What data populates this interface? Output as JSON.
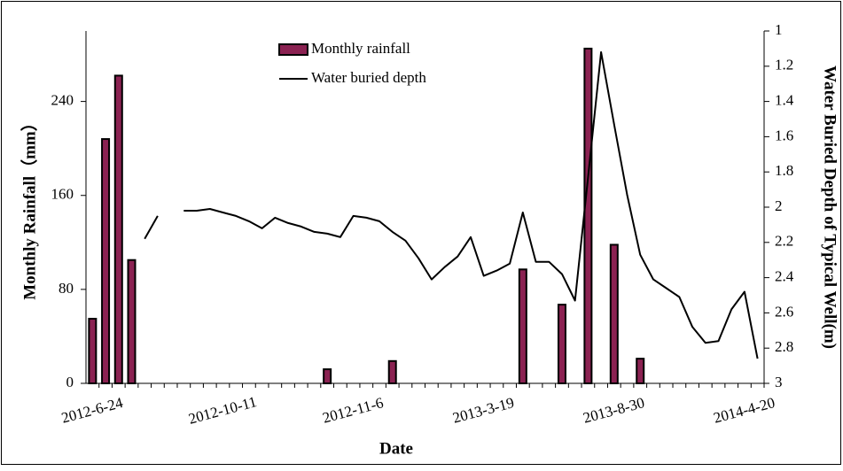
{
  "chart_data": {
    "type": "bar",
    "x_label": "Date",
    "y_label": "Monthly Rainfall（mm）",
    "y2_label": "Water Buried Depth of Typical Well(m)",
    "categories": [
      "2012-6-24",
      null,
      null,
      null,
      null,
      null,
      null,
      null,
      null,
      null,
      "2012-10-11",
      null,
      null,
      null,
      null,
      null,
      null,
      null,
      null,
      null,
      "2012-11-6",
      null,
      null,
      null,
      null,
      null,
      null,
      null,
      null,
      null,
      "2013-3-19",
      null,
      null,
      null,
      null,
      null,
      null,
      null,
      null,
      null,
      "2013-8-30",
      null,
      null,
      null,
      null,
      null,
      null,
      null,
      null,
      null,
      "2014-4-20",
      null
    ],
    "series": [
      {
        "name": "Monthly rainfall",
        "type": "bar",
        "color": "#8b2252",
        "values": [
          55,
          208,
          262,
          105,
          0,
          0,
          0,
          0,
          0,
          0,
          0,
          0,
          0,
          0,
          0,
          0,
          0,
          0,
          12,
          0,
          0,
          0,
          0,
          19,
          0,
          0,
          0,
          0,
          0,
          0,
          0,
          0,
          0,
          97,
          0,
          0,
          67,
          0,
          285,
          0,
          118,
          0,
          21,
          0,
          0,
          0,
          0,
          0,
          0,
          0,
          0,
          0
        ]
      },
      {
        "name": "Water buried depth",
        "type": "line",
        "axis": "y2",
        "color": "#000000",
        "values": [
          null,
          null,
          null,
          null,
          2.18,
          2.05,
          null,
          2.02,
          2.02,
          2.01,
          2.03,
          2.05,
          2.08,
          2.12,
          2.06,
          2.09,
          2.11,
          2.14,
          2.15,
          2.17,
          2.05,
          2.06,
          2.08,
          2.14,
          2.19,
          2.29,
          2.41,
          2.34,
          2.28,
          2.17,
          2.39,
          2.36,
          2.32,
          2.03,
          2.31,
          2.31,
          2.38,
          2.53,
          1.83,
          1.12,
          1.53,
          1.93,
          2.27,
          2.41,
          2.46,
          2.51,
          2.68,
          2.77,
          2.76,
          2.58,
          2.48,
          2.86
        ]
      }
    ],
    "ylim": [
      0,
      300
    ],
    "yticks": [
      0,
      80,
      160,
      240
    ],
    "y2lim": [
      3,
      1
    ],
    "y2ticks": [
      1,
      1.2,
      1.4,
      1.6,
      1.8,
      2,
      2.2,
      2.4,
      2.6,
      2.8,
      3
    ],
    "legend": "top"
  }
}
